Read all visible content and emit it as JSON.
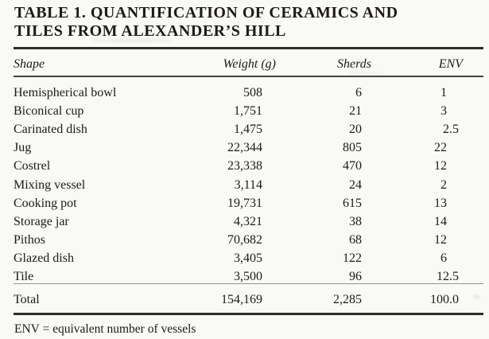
{
  "title": {
    "line1": "TABLE 1. QUANTIFICATION OF CERAMICS AND",
    "line2": "TILES FROM ALEXANDER’S HILL"
  },
  "table": {
    "columns": [
      "Shape",
      "Weight (g)",
      "Sherds",
      "ENV"
    ],
    "rows": [
      {
        "shape": "Hemispherical bowl",
        "weight": "508",
        "sherds": "6",
        "env": "1"
      },
      {
        "shape": "Biconical cup",
        "weight": "1,751",
        "sherds": "21",
        "env": "3"
      },
      {
        "shape": "Carinated dish",
        "weight": "1,475",
        "sherds": "20",
        "env": "2.5"
      },
      {
        "shape": "Jug",
        "weight": "22,344",
        "sherds": "805",
        "env": "22"
      },
      {
        "shape": "Costrel",
        "weight": "23,338",
        "sherds": "470",
        "env": "12"
      },
      {
        "shape": "Mixing vessel",
        "weight": "3,114",
        "sherds": "24",
        "env": "2"
      },
      {
        "shape": "Cooking pot",
        "weight": "19,731",
        "sherds": "615",
        "env": "13"
      },
      {
        "shape": "Storage jar",
        "weight": "4,321",
        "sherds": "38",
        "env": "14"
      },
      {
        "shape": "Pithos",
        "weight": "70,682",
        "sherds": "68",
        "env": "12"
      },
      {
        "shape": "Glazed dish",
        "weight": "3,405",
        "sherds": "122",
        "env": "6"
      },
      {
        "shape": "Tile",
        "weight": "3,500",
        "sherds": "96",
        "env": "12.5"
      }
    ],
    "total": {
      "label": "Total",
      "weight": "154,169",
      "sherds": "2,285",
      "env": "100.0"
    }
  },
  "footnote": "ENV = equivalent number of vessels",
  "colors": {
    "bg": "#f9f9f7",
    "ink": "#1d1a17",
    "rule_dark": "#2e2c2a",
    "rule_mid": "#45423f",
    "rule_light": "#96948e"
  }
}
